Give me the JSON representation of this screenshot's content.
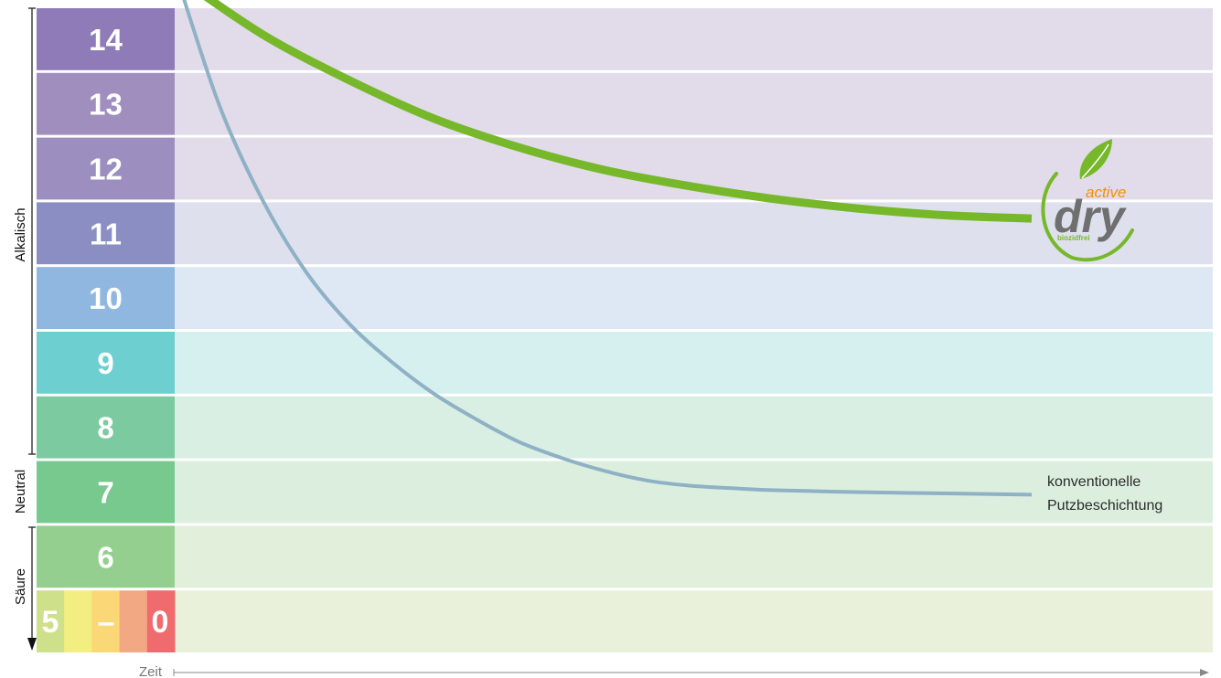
{
  "chart_data": {
    "type": "line",
    "title": "",
    "xlabel": "Zeit",
    "ylabel": "",
    "ylim": [
      0,
      14
    ],
    "grid": false,
    "bands": [
      {
        "label": "14",
        "color": "#8e7bb7",
        "bg": "#e1dbea"
      },
      {
        "label": "13",
        "color": "#a08ebf",
        "bg": "#e1dbea"
      },
      {
        "label": "12",
        "color": "#9c8fc0",
        "bg": "#e1dbea"
      },
      {
        "label": "11",
        "color": "#8b8ec2",
        "bg": "#dfe0ee"
      },
      {
        "label": "10",
        "color": "#8fb7df",
        "bg": "#dee8f4"
      },
      {
        "label": "9",
        "color": "#6dcfcf",
        "bg": "#d6efef"
      },
      {
        "label": "8",
        "color": "#7ccaa0",
        "bg": "#d9efe3"
      },
      {
        "label": "7",
        "color": "#77c98e",
        "bg": "#dcefdf"
      },
      {
        "label": "6",
        "color": "#95cf8f",
        "bg": "#e1efdb"
      },
      {
        "label": "5 – 0",
        "colors": [
          "#cfe08a",
          "#f3ee82",
          "#fbd877",
          "#f2a882",
          "#ef6b6e"
        ],
        "bg": "#e9f1db"
      }
    ],
    "low_band_glyphs": [
      "5",
      "–",
      "0"
    ],
    "side_labels": {
      "alkaline": "Alkalisch",
      "neutral": "Neutral",
      "acid": "Säure"
    },
    "series": [
      {
        "name": "active dry",
        "color": "#76b82a",
        "x": [
          0,
          0.1,
          0.2,
          0.3,
          0.4,
          0.5,
          0.6,
          0.7,
          0.8,
          0.9,
          1.0
        ],
        "y": [
          15.0,
          14.1,
          13.4,
          12.8,
          12.35,
          12.0,
          11.75,
          11.55,
          11.4,
          11.3,
          11.25
        ]
      },
      {
        "name": "konventionelle Putzbeschichtung",
        "color": "#8fb1c5",
        "x": [
          0,
          0.05,
          0.1,
          0.15,
          0.2,
          0.25,
          0.3,
          0.35,
          0.4,
          0.45,
          0.5,
          0.55,
          0.6,
          0.65,
          0.7,
          0.8,
          0.9,
          1.0
        ],
        "y": [
          15.0,
          13.0,
          11.55,
          10.45,
          9.65,
          9.05,
          8.55,
          8.15,
          7.8,
          7.55,
          7.35,
          7.2,
          7.12,
          7.08,
          7.05,
          7.02,
          7.0,
          6.98
        ]
      }
    ],
    "annotations": {
      "conventional_line1": "konventionelle",
      "conventional_line2": "Putzbeschichtung"
    },
    "logo": {
      "word_main": "dry",
      "word_top": "active",
      "word_sub": "biozidfrei",
      "green": "#76b82a",
      "gray": "#6f6f6f",
      "orange": "#f39200"
    }
  }
}
